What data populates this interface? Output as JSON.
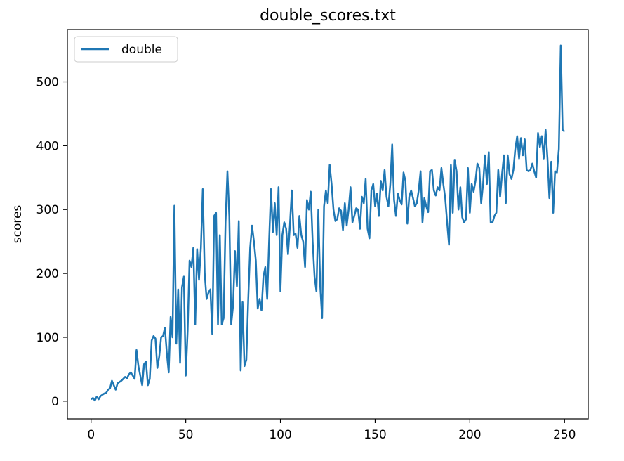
{
  "chart_data": {
    "type": "line",
    "title": "double_scores.txt",
    "xlabel": "",
    "ylabel": "scores",
    "xlim": [
      -12.5,
      262.5
    ],
    "ylim": [
      -27.7,
      582.0
    ],
    "xticks": [
      0,
      50,
      100,
      150,
      200,
      250
    ],
    "yticks": [
      0,
      100,
      200,
      300,
      400,
      500
    ],
    "grid": false,
    "legend": {
      "position": "top-left",
      "entries": [
        "double"
      ]
    },
    "series": [
      {
        "name": "double",
        "color": "#1f77b4",
        "x_start": 0,
        "x_step": 1,
        "values": [
          3,
          5,
          1,
          7,
          3,
          8,
          10,
          12,
          13,
          18,
          20,
          32,
          25,
          18,
          28,
          30,
          32,
          35,
          38,
          36,
          42,
          45,
          40,
          35,
          80,
          55,
          40,
          25,
          58,
          62,
          25,
          35,
          95,
          102,
          98,
          52,
          70,
          100,
          102,
          115,
          75,
          45,
          132,
          100,
          306,
          90,
          175,
          60,
          178,
          195,
          40,
          110,
          220,
          210,
          240,
          120,
          238,
          190,
          240,
          332,
          200,
          160,
          170,
          175,
          105,
          290,
          295,
          120,
          260,
          120,
          130,
          280,
          360,
          290,
          120,
          150,
          235,
          180,
          282,
          48,
          155,
          55,
          65,
          160,
          240,
          275,
          250,
          220,
          145,
          160,
          142,
          195,
          210,
          160,
          250,
          332,
          265,
          310,
          260,
          335,
          172,
          260,
          280,
          270,
          230,
          275,
          330,
          260,
          262,
          240,
          290,
          260,
          250,
          210,
          315,
          300,
          328,
          250,
          195,
          172,
          300,
          180,
          130,
          305,
          330,
          310,
          370,
          340,
          300,
          282,
          285,
          302,
          298,
          268,
          310,
          275,
          300,
          335,
          280,
          290,
          302,
          300,
          270,
          320,
          310,
          348,
          270,
          255,
          330,
          340,
          305,
          325,
          290,
          345,
          330,
          362,
          320,
          305,
          340,
          402,
          315,
          290,
          325,
          315,
          308,
          358,
          345,
          278,
          320,
          330,
          318,
          305,
          310,
          330,
          360,
          280,
          318,
          305,
          296,
          360,
          362,
          330,
          322,
          335,
          330,
          365,
          340,
          318,
          280,
          245,
          370,
          295,
          378,
          360,
          300,
          335,
          288,
          280,
          285,
          365,
          295,
          340,
          328,
          345,
          372,
          365,
          310,
          340,
          385,
          340,
          390,
          280,
          280,
          290,
          295,
          362,
          320,
          355,
          385,
          310,
          385,
          355,
          348,
          362,
          395,
          415,
          380,
          412,
          385,
          410,
          362,
          360,
          362,
          372,
          360,
          350,
          420,
          398,
          415,
          380,
          425,
          380,
          318,
          375,
          295,
          360,
          358,
          395,
          557,
          425,
          422
        ]
      }
    ]
  }
}
